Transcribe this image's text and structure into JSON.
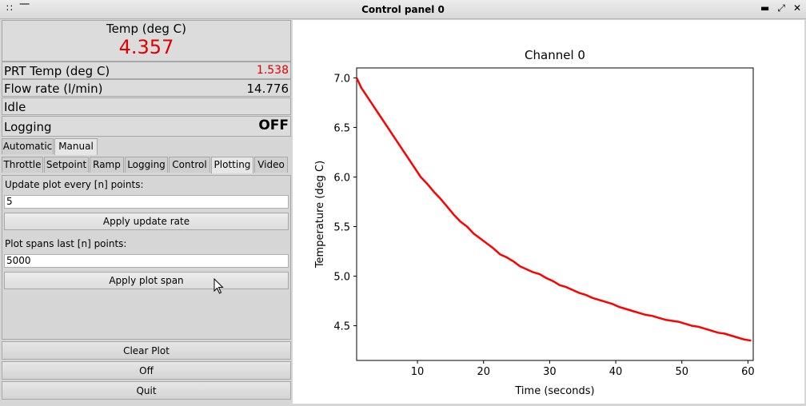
{
  "window": {
    "title": "Control panel 0"
  },
  "status": {
    "temp_label": "Temp (deg C)",
    "temp_value": "4.357",
    "prt_label": "PRT Temp (deg C)",
    "prt_value": "1.538",
    "flow_label": "Flow rate (l/min)",
    "flow_value": "14.776",
    "state": "Idle",
    "logging_label": "Logging",
    "logging_value": "OFF"
  },
  "mode_tabs": [
    "Automatic",
    "Manual"
  ],
  "sub_tabs": [
    "Throttle",
    "Setpoint",
    "Ramp",
    "Logging",
    "Control",
    "Plotting",
    "Video"
  ],
  "plotting": {
    "update_label": "Update plot every [n] points:",
    "update_value": "5",
    "apply_update": "Apply update rate",
    "span_label": "Plot spans last [n] points:",
    "span_value": "5000",
    "apply_span": "Apply plot span"
  },
  "buttons": {
    "clear": "Clear Plot",
    "off": "Off",
    "quit": "Quit"
  },
  "colors": {
    "accent_red": "#e00000",
    "line": "#ff0000"
  },
  "chart_data": {
    "type": "line",
    "title": "Channel 0",
    "xlabel": "Time (seconds)",
    "ylabel": "Temperature (deg C)",
    "xlim": [
      0.8,
      60.8
    ],
    "ylim": [
      4.15,
      7.1
    ],
    "xticks": [
      10,
      20,
      30,
      40,
      50,
      60
    ],
    "yticks": [
      4.5,
      5.0,
      5.5,
      6.0,
      6.5,
      7.0
    ],
    "series": [
      {
        "x": [
          0.8,
          1.5,
          2.5,
          3.5,
          4.5,
          5.5,
          6.5,
          7.5,
          8.5,
          9.5,
          10.5,
          11.5,
          12.5,
          13.5,
          14.5,
          15.5,
          16.5,
          17.5,
          18.5,
          19.5,
          20.5,
          21.5,
          22.5,
          23.5,
          24.5,
          25.5,
          26.5,
          27.5,
          28.5,
          29.5,
          30.5,
          31.5,
          32.5,
          33.5,
          34.5,
          35.5,
          36.5,
          37.5,
          38.5,
          39.5,
          40.5,
          41.5,
          42.5,
          43.5,
          44.5,
          45.5,
          46.5,
          47.5,
          48.5,
          49.5,
          50.5,
          51.5,
          52.5,
          53.5,
          54.5,
          55.5,
          56.5,
          57.5,
          58.5,
          59.5,
          60.5
        ],
        "y": [
          7.0,
          6.9,
          6.8,
          6.7,
          6.6,
          6.5,
          6.4,
          6.3,
          6.2,
          6.1,
          6.0,
          5.93,
          5.85,
          5.78,
          5.7,
          5.62,
          5.55,
          5.5,
          5.43,
          5.38,
          5.33,
          5.28,
          5.22,
          5.19,
          5.15,
          5.1,
          5.07,
          5.04,
          5.02,
          4.98,
          4.95,
          4.91,
          4.89,
          4.86,
          4.83,
          4.81,
          4.78,
          4.76,
          4.74,
          4.72,
          4.69,
          4.67,
          4.65,
          4.63,
          4.61,
          4.6,
          4.58,
          4.56,
          4.55,
          4.54,
          4.52,
          4.5,
          4.49,
          4.47,
          4.45,
          4.43,
          4.42,
          4.4,
          4.38,
          4.36,
          4.35
        ]
      }
    ]
  }
}
